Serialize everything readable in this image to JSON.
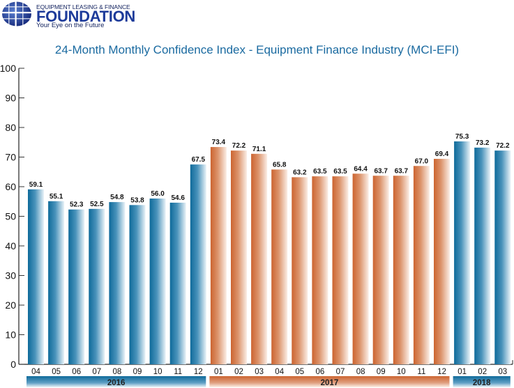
{
  "logo": {
    "top_line": "EQUIPMENT LEASING & FINANCE",
    "main": "FOUNDATION",
    "tagline": "Your Eye on the Future"
  },
  "colors": {
    "blue": "#0e6a9a",
    "orange": "#cc6430",
    "title": "#1a6aa0"
  },
  "chart_data": {
    "type": "bar",
    "title": "24-Month Monthly Confidence Index - Equipment Finance Industry (MCI-EFI)",
    "xlabel": "",
    "ylabel": "",
    "ylim": [
      0,
      100
    ],
    "yticks": [
      0,
      10,
      20,
      30,
      40,
      50,
      60,
      70,
      80,
      90,
      100
    ],
    "grid": false,
    "categories": [
      "04",
      "05",
      "06",
      "07",
      "08",
      "09",
      "10",
      "11",
      "12",
      "01",
      "02",
      "03",
      "04",
      "05",
      "06",
      "07",
      "08",
      "09",
      "10",
      "11",
      "12",
      "01",
      "02",
      "03"
    ],
    "values": [
      59.1,
      55.1,
      52.3,
      52.5,
      54.8,
      53.8,
      56.0,
      54.6,
      67.5,
      73.4,
      72.2,
      71.1,
      65.8,
      63.2,
      63.5,
      63.5,
      64.4,
      63.7,
      63.7,
      67.0,
      69.4,
      75.3,
      73.2,
      72.2
    ],
    "value_labels": [
      "59.1",
      "55.1",
      "52.3",
      "52.5",
      "54.8",
      "53.8",
      "56.0",
      "54.6",
      "67.5",
      "73.4",
      "72.2",
      "71.1",
      "65.8",
      "63.2",
      "63.5",
      "63.5",
      "64.4",
      "63.7",
      "63.7",
      "67.0",
      "69.4",
      "75.3",
      "73.2",
      "72.2"
    ],
    "year_groups": [
      {
        "label": "2016",
        "start": 0,
        "end": 8,
        "color": "blue"
      },
      {
        "label": "2017",
        "start": 9,
        "end": 20,
        "color": "orange"
      },
      {
        "label": "2018",
        "start": 21,
        "end": 23,
        "color": "blue"
      }
    ]
  }
}
